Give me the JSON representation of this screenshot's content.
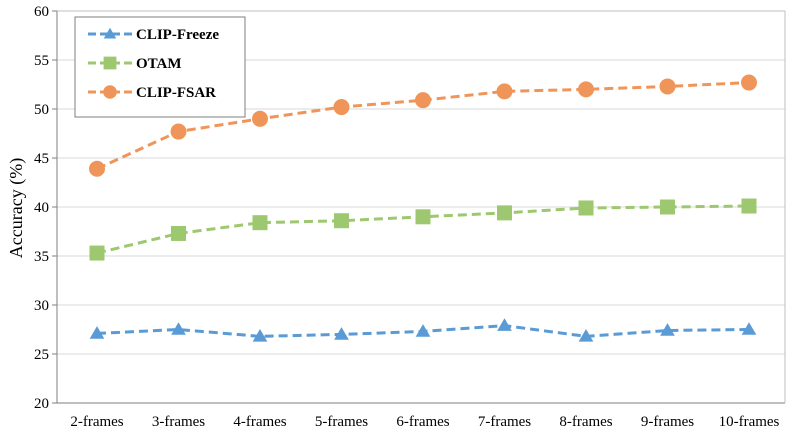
{
  "chart_data": {
    "type": "line",
    "title": "",
    "xlabel": "",
    "ylabel": "Accuracy (%)",
    "ylim": [
      20,
      60
    ],
    "yticks": [
      20,
      25,
      30,
      35,
      40,
      45,
      50,
      55,
      60
    ],
    "grid": "horizontal",
    "legend_position": "top-left",
    "categories": [
      "2-frames",
      "3-frames",
      "4-frames",
      "5-frames",
      "6-frames",
      "7-frames",
      "8-frames",
      "9-frames",
      "10-frames"
    ],
    "series": [
      {
        "name": "CLIP-Freeze",
        "color": "#5b9bd5",
        "marker": "triangle",
        "values": [
          27.1,
          27.5,
          26.8,
          27.0,
          27.3,
          27.9,
          26.8,
          27.4,
          27.5
        ]
      },
      {
        "name": "OTAM",
        "color": "#9dc870",
        "marker": "square",
        "values": [
          35.3,
          37.3,
          38.4,
          38.6,
          39.0,
          39.4,
          39.9,
          40.0,
          40.1
        ]
      },
      {
        "name": "CLIP-FSAR",
        "color": "#f0955a",
        "marker": "circle",
        "values": [
          43.9,
          47.7,
          49.0,
          50.2,
          50.9,
          51.8,
          52.0,
          52.3,
          52.7
        ]
      }
    ]
  }
}
